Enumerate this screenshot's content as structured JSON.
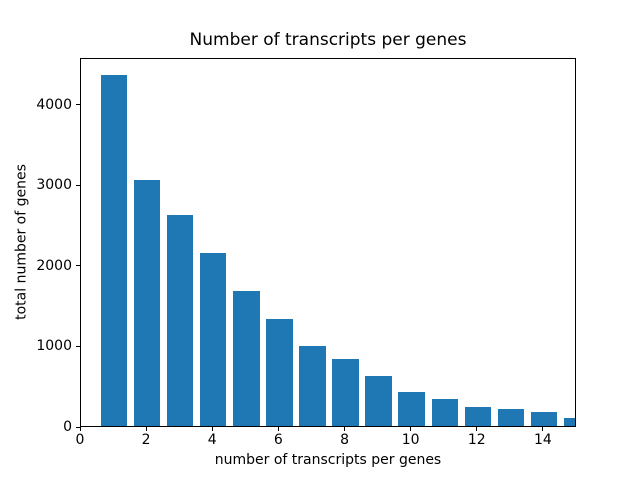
{
  "chart_data": {
    "type": "bar",
    "title": "Number of transcripts per genes",
    "xlabel": "number of transcripts per genes",
    "ylabel": "total number of genes",
    "x": [
      1,
      2,
      3,
      4,
      5,
      6,
      7,
      8,
      9,
      10,
      11,
      12,
      13,
      14,
      15
    ],
    "values": [
      4360,
      3050,
      2625,
      2150,
      1675,
      1325,
      995,
      835,
      620,
      420,
      340,
      230,
      215,
      180,
      105
    ],
    "bar_color": "#1f77b4",
    "bar_width": 0.8,
    "xlim": [
      0,
      15
    ],
    "ylim": [
      0,
      4580
    ],
    "xticks": [
      0,
      2,
      4,
      6,
      8,
      10,
      12,
      14
    ],
    "yticks": [
      0,
      1000,
      2000,
      3000,
      4000
    ],
    "grid": false,
    "legend": "none",
    "axis_color": "#000000",
    "background_color": "#ffffff"
  }
}
